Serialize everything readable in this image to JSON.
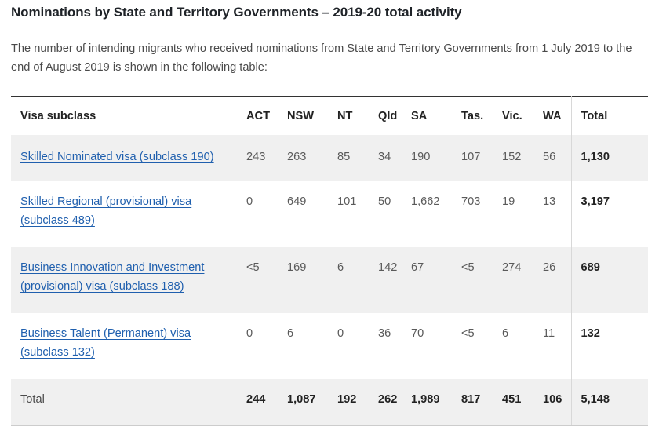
{
  "title": "Nominations by State and Territory Governments – 2019-20 total activity",
  "intro": "The number of intending migrants who received nominations from State and Territory Governments from 1 July 2019 to the end of August 2019 is shown in the following table:",
  "table": {
    "headers": [
      "Visa subclass",
      "ACT",
      "NSW",
      "NT",
      "Qld",
      "SA",
      "Tas.",
      "Vic.",
      "WA",
      "Total"
    ],
    "rows": [
      {
        "label": "Skilled Nominated visa (subclass 190)",
        "values": [
          "243",
          "263",
          "85",
          "34",
          "190",
          "107",
          "152",
          "56"
        ],
        "total": "1,130"
      },
      {
        "label": "Skilled Regional (provisional) visa (subclass 489)",
        "values": [
          "0",
          "649",
          "101",
          "50",
          "1,662",
          "703",
          "19",
          "13"
        ],
        "total": "3,197"
      },
      {
        "label": "Business Innovation and Investment (provisional) visa (subclass 188)",
        "values": [
          "<5",
          "169",
          "6",
          "142",
          "67",
          "<5",
          "274",
          "26"
        ],
        "total": "689"
      },
      {
        "label": "Business Talent (Permanent) visa (subclass 132)",
        "values": [
          "0",
          "6",
          "0",
          "36",
          "70",
          "<5",
          "6",
          "11"
        ],
        "total": "132"
      }
    ],
    "total_row": {
      "label": "Total",
      "values": [
        "244",
        "1,087",
        "192",
        "262",
        "1,989",
        "817",
        "451",
        "106"
      ],
      "total": "5,148"
    }
  },
  "colors": {
    "link": "#1f5fae",
    "shade": "#f0f0f0"
  }
}
